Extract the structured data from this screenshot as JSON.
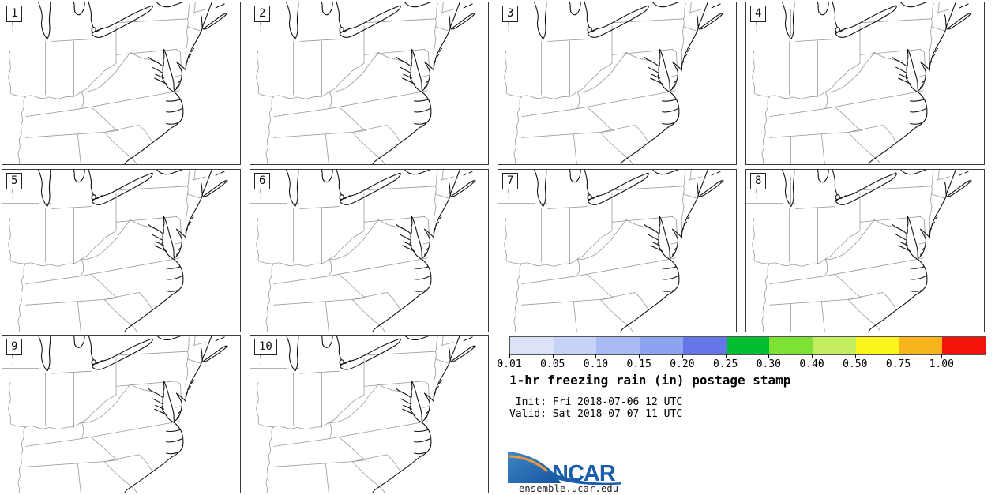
{
  "figure": {
    "title": "1-hr freezing rain (in) postage stamp",
    "init_line": " Init: Fri 2018-07-06 12 UTC",
    "valid_line": "Valid: Sat 2018-07-07 11 UTC"
  },
  "panels": [
    {
      "label": "1"
    },
    {
      "label": "2"
    },
    {
      "label": "3"
    },
    {
      "label": "4"
    },
    {
      "label": "5"
    },
    {
      "label": "6"
    },
    {
      "label": "7"
    },
    {
      "label": "8"
    },
    {
      "label": "9"
    },
    {
      "label": "10"
    }
  ],
  "colorbar": {
    "units": "in",
    "tick_labels": [
      "0.01",
      "0.05",
      "0.10",
      "0.15",
      "0.20",
      "0.25",
      "0.30",
      "0.40",
      "0.50",
      "0.75",
      "1.00"
    ],
    "segment_colors": [
      "#dce3f9",
      "#c7d2f7",
      "#a9bbf4",
      "#8ca4f0",
      "#6577e8",
      "#00be32",
      "#7ee234",
      "#c4ee62",
      "#f8f41c",
      "#f8b41c",
      "#f21408"
    ],
    "outline_color": "#555555"
  },
  "logo": {
    "text": "NCAR",
    "url": "ensemble.ucar.edu",
    "blue": "#1a5dab",
    "orange": "#f2993e"
  }
}
